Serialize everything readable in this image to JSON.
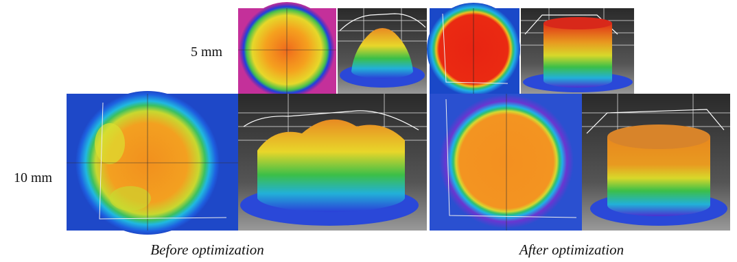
{
  "rows": [
    {
      "label": "5 mm"
    },
    {
      "label": "10 mm"
    }
  ],
  "columns": [
    {
      "caption": "Before optimization"
    },
    {
      "caption": "After optimization"
    }
  ]
}
